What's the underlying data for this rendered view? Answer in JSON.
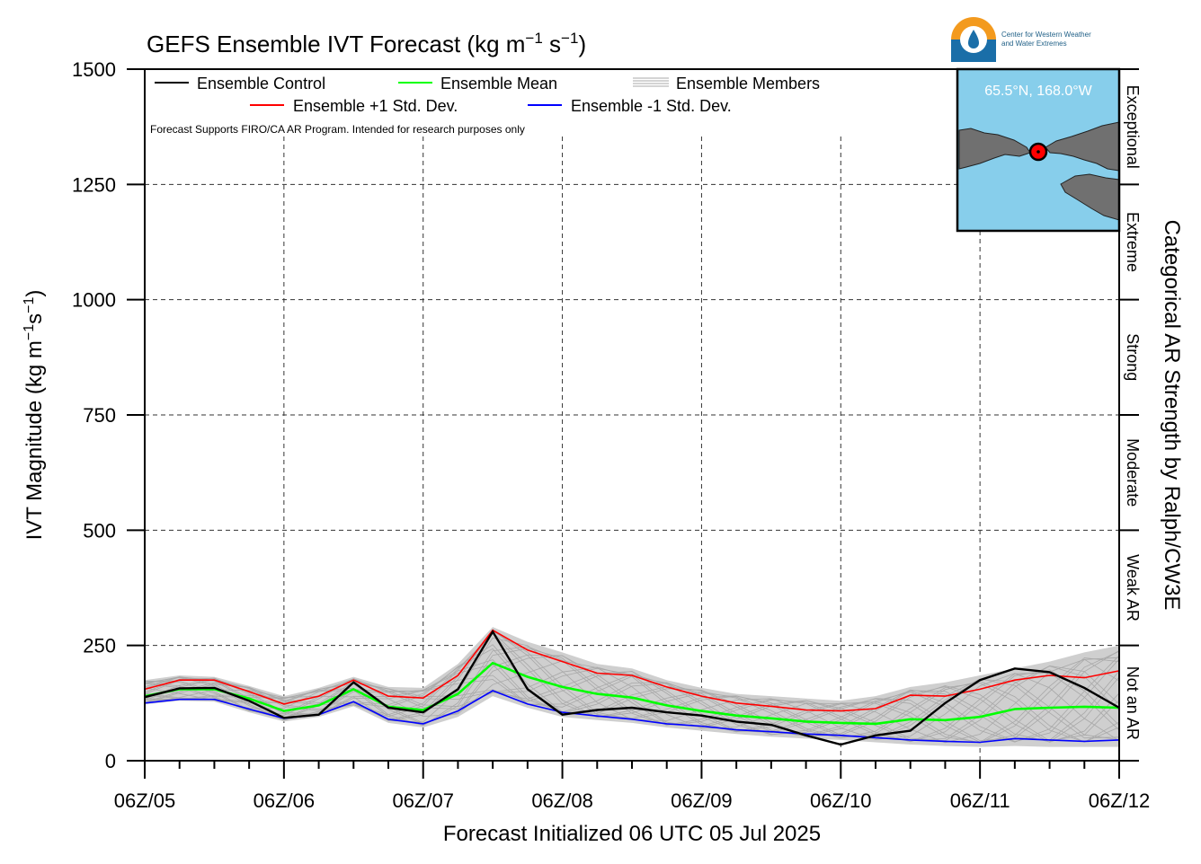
{
  "chart_data": {
    "type": "line",
    "title": "GEFS Ensemble IVT Forecast (kg m",
    "title_sup1": "−1",
    "title_mid": " s",
    "title_sup2": "−1",
    "title_end": ")",
    "xlabel": "Forecast Initialized 06 UTC 05 Jul 2025",
    "ylabel": "IVT Magnitude (kg m",
    "ylabel_sup1": "−1",
    "ylabel_mid": "s",
    "ylabel_sup2": "−1",
    "ylabel_end": ")",
    "right_label": "Categorical AR Strength by Ralph/CW3E",
    "note": "Forecast Supports FIRO/CA AR Program. Intended for research purposes only",
    "xlim": [
      0,
      168
    ],
    "ylim": [
      0,
      1500
    ],
    "grid": true,
    "x_ticks": [
      {
        "value": 0,
        "label": "06Z/05"
      },
      {
        "value": 24,
        "label": "06Z/06"
      },
      {
        "value": 48,
        "label": "06Z/07"
      },
      {
        "value": 72,
        "label": "06Z/08"
      },
      {
        "value": 96,
        "label": "06Z/09"
      },
      {
        "value": 120,
        "label": "06Z/10"
      },
      {
        "value": 144,
        "label": "06Z/11"
      },
      {
        "value": 168,
        "label": "06Z/12"
      }
    ],
    "y_ticks": [
      {
        "value": 0,
        "label": "0"
      },
      {
        "value": 250,
        "label": "250"
      },
      {
        "value": 500,
        "label": "500"
      },
      {
        "value": 750,
        "label": "750"
      },
      {
        "value": 1000,
        "label": "1000"
      },
      {
        "value": 1250,
        "label": "1250"
      },
      {
        "value": 1500,
        "label": "1500"
      }
    ],
    "categories": [
      {
        "label": "Not an AR",
        "from": 0,
        "to": 250
      },
      {
        "label": "Weak AR",
        "from": 250,
        "to": 500
      },
      {
        "label": "Moderate",
        "from": 500,
        "to": 750
      },
      {
        "label": "Strong",
        "from": 750,
        "to": 1000
      },
      {
        "label": "Extreme",
        "from": 1000,
        "to": 1250
      },
      {
        "label": "Exceptional",
        "from": 1250,
        "to": 1500
      }
    ],
    "legend": [
      {
        "label": "Ensemble Control",
        "color": "#000000"
      },
      {
        "label": "Ensemble Mean",
        "color": "#00ff00"
      },
      {
        "label": "Ensemble Members",
        "color": "#aaaaaa"
      },
      {
        "label": "Ensemble +1 Std. Dev.",
        "color": "#ff0000"
      },
      {
        "label": "Ensemble -1 Std. Dev.",
        "color": "#0000ff"
      }
    ],
    "x": [
      0,
      6,
      12,
      18,
      24,
      30,
      36,
      42,
      48,
      54,
      60,
      66,
      72,
      78,
      84,
      90,
      96,
      102,
      108,
      114,
      120,
      126,
      132,
      138,
      144,
      150,
      156,
      162,
      168
    ],
    "series": [
      {
        "name": "Ensemble +1 Std. Dev.",
        "color": "#ff0000",
        "values": [
          155,
          175,
          175,
          150,
          123,
          140,
          175,
          140,
          136,
          185,
          283,
          240,
          215,
          190,
          185,
          160,
          140,
          125,
          118,
          110,
          108,
          113,
          142,
          140,
          155,
          175,
          185,
          180,
          195
        ]
      },
      {
        "name": "Ensemble Mean",
        "color": "#00ff00",
        "values": [
          140,
          155,
          155,
          135,
          108,
          120,
          155,
          117,
          110,
          145,
          212,
          182,
          160,
          145,
          137,
          120,
          108,
          98,
          92,
          85,
          82,
          80,
          90,
          88,
          95,
          112,
          115,
          117,
          115
        ]
      },
      {
        "name": "Ensemble -1 Std. Dev.",
        "color": "#0000ff",
        "values": [
          125,
          133,
          133,
          112,
          92,
          100,
          128,
          90,
          80,
          108,
          152,
          123,
          105,
          97,
          90,
          80,
          75,
          67,
          63,
          58,
          55,
          50,
          45,
          42,
          40,
          48,
          45,
          42,
          45
        ]
      },
      {
        "name": "Ensemble Control",
        "color": "#000000",
        "values": [
          138,
          157,
          158,
          130,
          93,
          100,
          170,
          115,
          105,
          155,
          280,
          155,
          100,
          110,
          115,
          105,
          98,
          85,
          78,
          55,
          35,
          55,
          65,
          125,
          175,
          200,
          192,
          158,
          115
        ]
      }
    ],
    "spread_upper": [
      175,
      185,
      182,
      162,
      140,
      158,
      182,
      160,
      158,
      210,
      290,
      258,
      235,
      210,
      200,
      175,
      158,
      145,
      140,
      135,
      130,
      140,
      160,
      170,
      185,
      200,
      215,
      235,
      250
    ],
    "spread_lower": [
      122,
      130,
      128,
      105,
      85,
      95,
      118,
      82,
      72,
      95,
      140,
      115,
      95,
      88,
      82,
      72,
      65,
      58,
      52,
      48,
      45,
      40,
      35,
      32,
      30,
      32,
      30,
      30,
      30
    ]
  },
  "inset": {
    "location_label": "65.5°N, 168.0°W",
    "ocean_color": "#87ceeb",
    "land_color": "#707070",
    "marker_color": "#ff0000"
  },
  "logo": {
    "line1": "Center for Western Weather",
    "line2": "and Water Extremes"
  }
}
